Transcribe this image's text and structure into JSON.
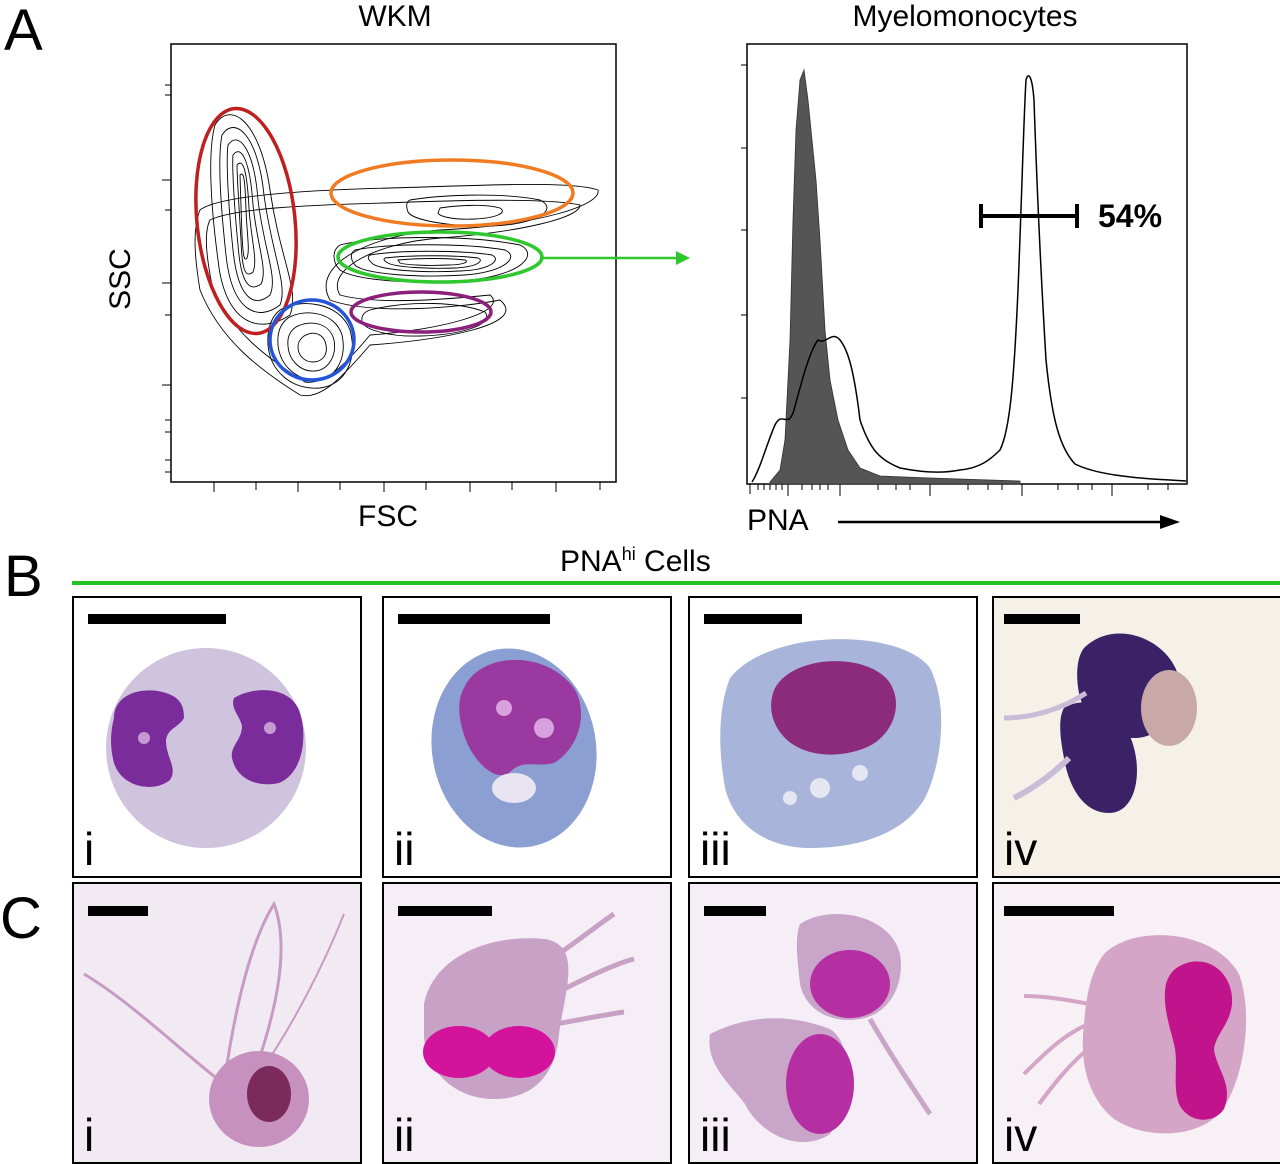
{
  "panels": {
    "a": "A",
    "b": "B",
    "c": "C"
  },
  "flow": {
    "title": "WKM",
    "xlabel": "FSC",
    "ylabel": "SSC",
    "gates": [
      {
        "name": "red",
        "color": "#c01f1f"
      },
      {
        "name": "orange",
        "color": "#f07b22"
      },
      {
        "name": "green",
        "color": "#2ec82e"
      },
      {
        "name": "purple",
        "color": "#8c1f7c"
      },
      {
        "name": "blue",
        "color": "#2455d9"
      }
    ]
  },
  "histogram": {
    "title": "Myelomonocytes",
    "xlabel": "PNA",
    "gate_percent": "54%"
  },
  "section_b": {
    "title": "PNA",
    "title_sup": "hi",
    "title_suffix": " Cells"
  },
  "tiles_b": [
    {
      "label": "i"
    },
    {
      "label": "ii"
    },
    {
      "label": "iii"
    },
    {
      "label": "iv"
    }
  ],
  "tiles_c": [
    {
      "label": "i"
    },
    {
      "label": "ii"
    },
    {
      "label": "iii"
    },
    {
      "label": "iv"
    }
  ]
}
